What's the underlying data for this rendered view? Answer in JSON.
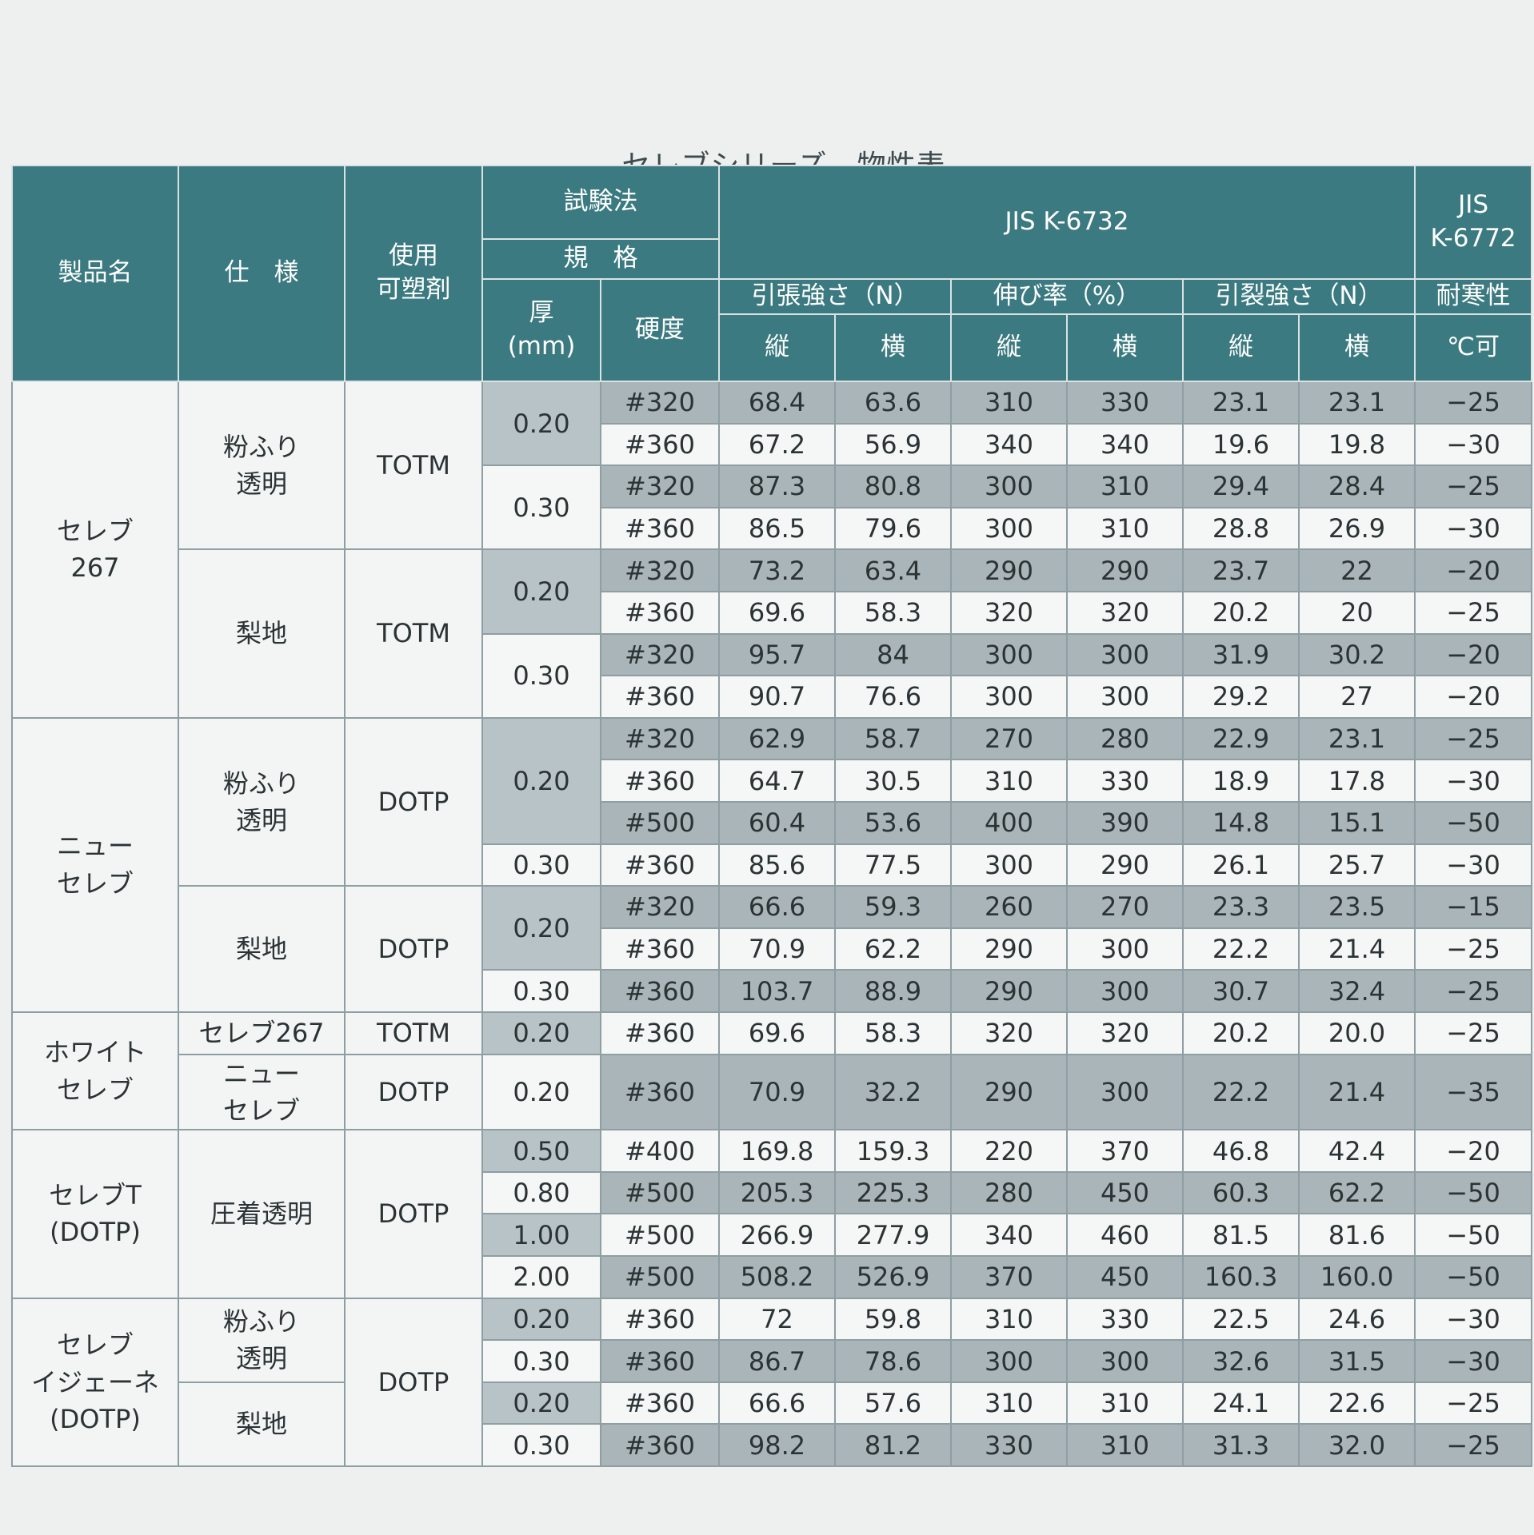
{
  "title": "セレブシリーズ　物性表",
  "header": {
    "product": "製品名",
    "spec": "仕　様",
    "plasticizer": "使用\n可塑剤",
    "test_method": "試験法",
    "standard": "規　格",
    "thickness": "厚\n(mm)",
    "hardness": "硬度",
    "jis1": "JIS K-6732",
    "jis2": "JIS\nK-6772",
    "tensile": "引張強さ（N）",
    "elongation": "伸び率（%）",
    "tear": "引裂強さ（N）",
    "cold": "耐寒性",
    "vertical": "縦",
    "horizontal": "横",
    "unit": "℃可"
  },
  "rows": [
    {
      "product": "セレブ\n267",
      "spec": "粉ふり\n透明",
      "plasticizer": "TOTM",
      "thickness": "0.20",
      "hardness": "#320",
      "values": [
        "68.4",
        "63.6",
        "310",
        "330",
        "23.1",
        "23.1",
        "−25"
      ]
    },
    {
      "hardness": "#360",
      "values": [
        "67.2",
        "56.9",
        "340",
        "340",
        "19.6",
        "19.8",
        "−30"
      ]
    },
    {
      "thickness": "0.30",
      "hardness": "#320",
      "values": [
        "87.3",
        "80.8",
        "300",
        "310",
        "29.4",
        "28.4",
        "−25"
      ]
    },
    {
      "hardness": "#360",
      "values": [
        "86.5",
        "79.6",
        "300",
        "310",
        "28.8",
        "26.9",
        "−30"
      ]
    },
    {
      "spec": "梨地",
      "plasticizer": "TOTM",
      "thickness": "0.20",
      "hardness": "#320",
      "values": [
        "73.2",
        "63.4",
        "290",
        "290",
        "23.7",
        "22",
        "−20"
      ]
    },
    {
      "hardness": "#360",
      "values": [
        "69.6",
        "58.3",
        "320",
        "320",
        "20.2",
        "20",
        "−25"
      ]
    },
    {
      "thickness": "0.30",
      "hardness": "#320",
      "values": [
        "95.7",
        "84",
        "300",
        "300",
        "31.9",
        "30.2",
        "−20"
      ]
    },
    {
      "hardness": "#360",
      "values": [
        "90.7",
        "76.6",
        "300",
        "300",
        "29.2",
        "27",
        "−20"
      ]
    },
    {
      "product": "ニュー\nセレブ",
      "spec": "粉ふり\n透明",
      "plasticizer": "DOTP",
      "thickness": "0.20",
      "hardness": "#320",
      "values": [
        "62.9",
        "58.7",
        "270",
        "280",
        "22.9",
        "23.1",
        "−25"
      ]
    },
    {
      "hardness": "#360",
      "values": [
        "64.7",
        "30.5",
        "310",
        "330",
        "18.9",
        "17.8",
        "−30"
      ]
    },
    {
      "hardness": "#500",
      "values": [
        "60.4",
        "53.6",
        "400",
        "390",
        "14.8",
        "15.1",
        "−50"
      ]
    },
    {
      "thickness": "0.30",
      "hardness": "#360",
      "values": [
        "85.6",
        "77.5",
        "300",
        "290",
        "26.1",
        "25.7",
        "−30"
      ]
    },
    {
      "spec": "梨地",
      "plasticizer": "DOTP",
      "thickness": "0.20",
      "hardness": "#320",
      "values": [
        "66.6",
        "59.3",
        "260",
        "270",
        "23.3",
        "23.5",
        "−15"
      ]
    },
    {
      "hardness": "#360",
      "values": [
        "70.9",
        "62.2",
        "290",
        "300",
        "22.2",
        "21.4",
        "−25"
      ]
    },
    {
      "thickness": "0.30",
      "hardness": "#360",
      "values": [
        "103.7",
        "88.9",
        "290",
        "300",
        "30.7",
        "32.4",
        "−25"
      ]
    },
    {
      "product": "ホワイト\nセレブ",
      "spec": "セレブ267",
      "plasticizer": "TOTM",
      "thickness": "0.20",
      "hardness": "#360",
      "values": [
        "69.6",
        "58.3",
        "320",
        "320",
        "20.2",
        "20.0",
        "−25"
      ]
    },
    {
      "spec": "ニュー\nセレブ",
      "plasticizer": "DOTP",
      "thickness": "0.20",
      "hardness": "#360",
      "values": [
        "70.9",
        "32.2",
        "290",
        "300",
        "22.2",
        "21.4",
        "−35"
      ]
    },
    {
      "product": "セレブT\n(DOTP)",
      "spec": "圧着透明",
      "plasticizer": "DOTP",
      "thickness": "0.50",
      "hardness": "#400",
      "values": [
        "169.8",
        "159.3",
        "220",
        "370",
        "46.8",
        "42.4",
        "−20"
      ]
    },
    {
      "thickness": "0.80",
      "hardness": "#500",
      "values": [
        "205.3",
        "225.3",
        "280",
        "450",
        "60.3",
        "62.2",
        "−50"
      ]
    },
    {
      "thickness": "1.00",
      "hardness": "#500",
      "values": [
        "266.9",
        "277.9",
        "340",
        "460",
        "81.5",
        "81.6",
        "−50"
      ]
    },
    {
      "thickness": "2.00",
      "hardness": "#500",
      "values": [
        "508.2",
        "526.9",
        "370",
        "450",
        "160.3",
        "160.0",
        "−50"
      ]
    },
    {
      "product": "セレブ\nイジェーネ\n(DOTP)",
      "spec": "粉ふり\n透明",
      "plasticizer": "DOTP",
      "thickness": "0.20",
      "hardness": "#360",
      "values": [
        "72",
        "59.8",
        "310",
        "330",
        "22.5",
        "24.6",
        "−30"
      ]
    },
    {
      "thickness": "0.30",
      "hardness": "#360",
      "values": [
        "86.7",
        "78.6",
        "300",
        "300",
        "32.6",
        "31.5",
        "−30"
      ]
    },
    {
      "spec": "梨地",
      "thickness": "0.20",
      "hardness": "#360",
      "values": [
        "66.6",
        "57.6",
        "310",
        "310",
        "24.1",
        "22.6",
        "−25"
      ]
    },
    {
      "thickness": "0.30",
      "hardness": "#360",
      "values": [
        "98.2",
        "81.2",
        "330",
        "310",
        "31.3",
        "32.0",
        "−25"
      ]
    }
  ]
}
